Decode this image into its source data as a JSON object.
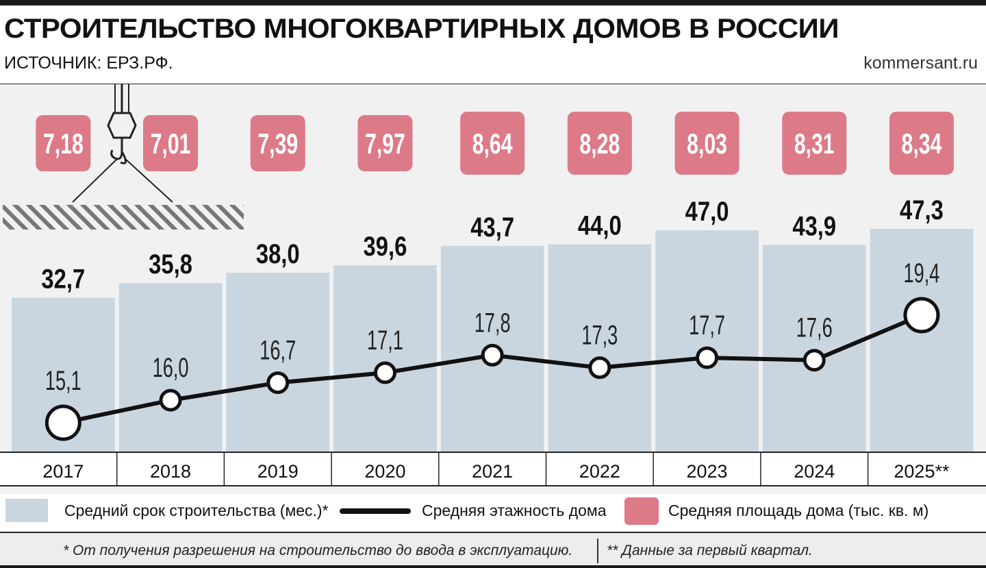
{
  "header": {
    "title": "СТРОИТЕЛЬСТВО МНОГОКВАРТИРНЫХ ДОМОВ В РОССИИ",
    "source": "ИСТОЧНИК: ЕРЗ.РФ.",
    "site": "kommersant.ru"
  },
  "colors": {
    "bar": "#c9d6e0",
    "area_badge": "#dd7a88",
    "line": "#111111",
    "background": "#f1f1f1"
  },
  "chart_data": {
    "type": "bar",
    "categories": [
      "2017",
      "2018",
      "2019",
      "2020",
      "2021",
      "2022",
      "2023",
      "2024",
      "2025**"
    ],
    "series": [
      {
        "name": "Средний срок строительства (мес.)*",
        "type": "bar",
        "values": [
          32.7,
          35.8,
          38.0,
          39.6,
          43.7,
          44.0,
          47.0,
          43.9,
          47.3
        ],
        "labels": [
          "32,7",
          "35,8",
          "38,0",
          "39,6",
          "43,7",
          "44,0",
          "47,0",
          "43,9",
          "47,3"
        ]
      },
      {
        "name": "Средняя этажность дома",
        "type": "line",
        "values": [
          15.1,
          16.0,
          16.7,
          17.1,
          17.8,
          17.3,
          17.7,
          17.6,
          19.4
        ],
        "labels": [
          "15,1",
          "16,0",
          "16,7",
          "17,1",
          "17,8",
          "17,3",
          "17,7",
          "17,6",
          "19,4"
        ]
      },
      {
        "name": "Средняя площадь дома  (тыс. кв. м)",
        "type": "badge",
        "values": [
          7.18,
          7.01,
          7.39,
          7.97,
          8.64,
          8.28,
          8.03,
          8.31,
          8.34
        ],
        "labels": [
          "7,18",
          "7,01",
          "7,39",
          "7,97",
          "8,64",
          "8,28",
          "8,03",
          "8,31",
          "8,34"
        ]
      }
    ],
    "grid": false,
    "legend_position": "bottom"
  },
  "legend": {
    "bars": "Средний срок строительства (мес.)*",
    "line": "Средняя этажность дома",
    "area": "Средняя площадь дома  (тыс. кв. м)"
  },
  "footnotes": {
    "note1": "* От получения разрешения на строительство до ввода в эксплуатацию.",
    "note2": "** Данные за первый квартал."
  },
  "decoration": {
    "crane_icon": "crane-hook-icon"
  }
}
